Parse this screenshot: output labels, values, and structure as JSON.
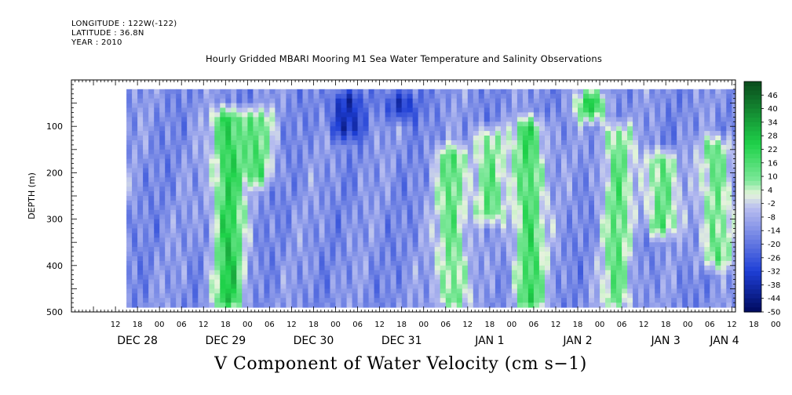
{
  "header": {
    "longitude": "LONGITUDE : 122W(-122)",
    "latitude": "LATITUDE : 36.8N",
    "year": "YEAR : 2010"
  },
  "colors": {
    "negative_extreme": "#000a5e",
    "negative_strong": "#1e3fd6",
    "negative_weak": "#b8bef0",
    "neutral": "#e6f4dc",
    "positive_weak": "#7ee89a",
    "positive_strong": "#1fd24a",
    "positive_extreme": "#0a4a1c"
  },
  "chart_data": {
    "type": "heatmap",
    "title": "Hourly Gridded MBARI Mooring M1 Sea Water Temperature and Salinity Observations",
    "xlabel": "V Component of Water Velocity (cm s−1)",
    "ylabel": "DEPTH (m)",
    "ylim": [
      500,
      0
    ],
    "y_ticks": [
      "100",
      "200",
      "300",
      "400",
      "500"
    ],
    "x_hour_ticks": [
      "12",
      "18",
      "00",
      "06",
      "12",
      "18",
      "00",
      "06",
      "12",
      "18",
      "00",
      "06",
      "12",
      "18",
      "00",
      "06",
      "12",
      "18",
      "00",
      "06",
      "12",
      "18",
      "00",
      "06",
      "12",
      "18",
      "00",
      "06",
      "12",
      "18",
      "00",
      "06"
    ],
    "x_date_labels": [
      {
        "label": "DEC 28",
        "hour": 18
      },
      {
        "label": "DEC 29",
        "hour": 42
      },
      {
        "label": "DEC 30",
        "hour": 66
      },
      {
        "label": "DEC 31",
        "hour": 90
      },
      {
        "label": "JAN  1",
        "hour": 114
      },
      {
        "label": "JAN  2",
        "hour": 138
      },
      {
        "label": "JAN  3",
        "hour": 162
      },
      {
        "label": "JAN  4",
        "hour": 178
      }
    ],
    "x_range_hours": [
      0,
      181
    ],
    "data_start_hour": 15,
    "data_end_hour": 183,
    "data_depth_range": [
      20,
      490
    ],
    "colorbar_labels": [
      "46",
      "40",
      "34",
      "28",
      "22",
      "16",
      "10",
      "4",
      "-2",
      "-8",
      "-14",
      "-20",
      "-26",
      "-32",
      "-38",
      "-44",
      "-50"
    ],
    "colorbar_range": [
      -50,
      52
    ],
    "features": [
      {
        "hour": 42,
        "depth_min": 60,
        "depth_max": 490,
        "value": 22
      },
      {
        "hour": 50,
        "depth_min": 60,
        "depth_max": 220,
        "value": 10
      },
      {
        "hour": 74,
        "depth_min": 20,
        "depth_max": 120,
        "value": -40
      },
      {
        "hour": 89,
        "depth_min": 20,
        "depth_max": 80,
        "value": -38
      },
      {
        "hour": 103,
        "depth_min": 140,
        "depth_max": 490,
        "value": 12
      },
      {
        "hour": 113,
        "depth_min": 100,
        "depth_max": 300,
        "value": 10
      },
      {
        "hour": 124,
        "depth_min": 80,
        "depth_max": 490,
        "value": 18
      },
      {
        "hour": 141,
        "depth_min": 20,
        "depth_max": 80,
        "value": 20
      },
      {
        "hour": 148,
        "depth_min": 90,
        "depth_max": 490,
        "value": 10
      },
      {
        "hour": 160,
        "depth_min": 150,
        "depth_max": 330,
        "value": 14
      },
      {
        "hour": 175,
        "depth_min": 120,
        "depth_max": 400,
        "value": 12
      }
    ]
  }
}
